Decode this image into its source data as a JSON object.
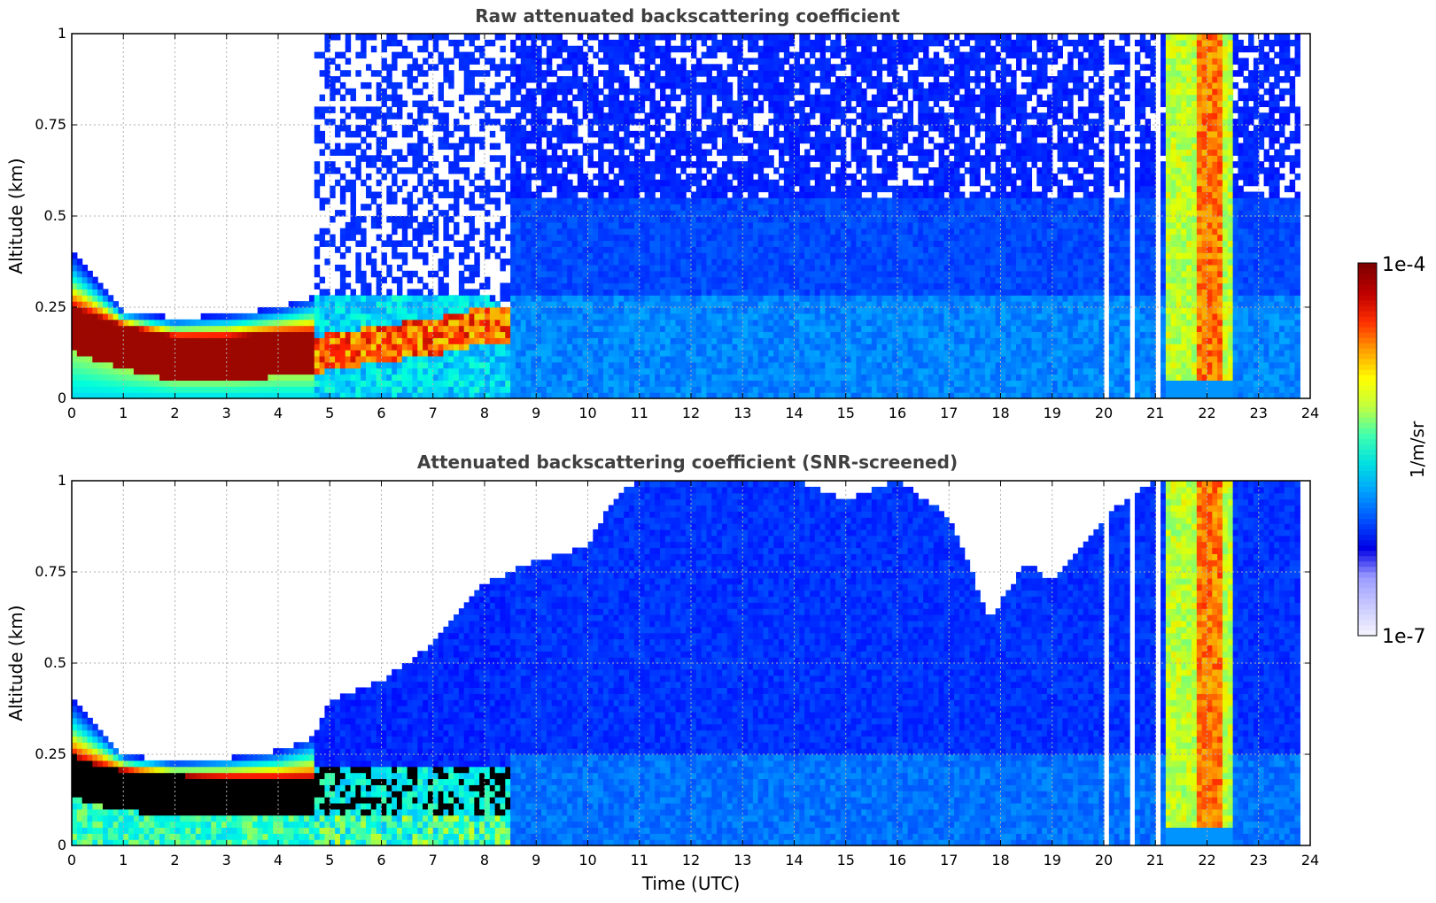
{
  "chart_data": [
    {
      "type": "heatmap",
      "title": "Raw attenuated backscattering coefficient",
      "xlabel": "",
      "ylabel": "Altitude (km)",
      "xlim": [
        0,
        24
      ],
      "ylim": [
        0,
        1
      ],
      "x_ticks": [
        "0",
        "1",
        "2",
        "3",
        "4",
        "5",
        "6",
        "7",
        "8",
        "9",
        "10",
        "11",
        "12",
        "13",
        "14",
        "15",
        "16",
        "17",
        "18",
        "19",
        "20",
        "21",
        "22",
        "23",
        "24"
      ],
      "y_ticks": [
        "0",
        "0.25",
        "0.5",
        "0.75",
        "1"
      ],
      "grid": true,
      "colorscale": "jet",
      "zscale": "log",
      "features": {
        "aerosol_layer_top_km": [
          [
            0,
            0.4
          ],
          [
            1,
            0.24
          ],
          [
            2,
            0.22
          ],
          [
            3,
            0.23
          ],
          [
            4,
            0.25
          ],
          [
            4.7,
            0.28
          ],
          [
            7,
            0.28
          ],
          [
            8,
            0.28
          ],
          [
            9,
            0.2
          ]
        ],
        "strong_layer_peak_km": [
          [
            0,
            0.19
          ],
          [
            1,
            0.14
          ],
          [
            2,
            0.11
          ],
          [
            3,
            0.11
          ],
          [
            4,
            0.12
          ],
          [
            4.7,
            0.12
          ],
          [
            6,
            0.15
          ],
          [
            7,
            0.17
          ],
          [
            8,
            0.2
          ]
        ],
        "white_gap_until_hour": 4.7,
        "noise_onset_hour": 4.7,
        "data_end_hour": 23.8,
        "cloud_bands_hour": [
          [
            21.2,
            22.5
          ]
        ],
        "cloud_core_hour": [
          [
            21.8,
            22.3
          ]
        ],
        "white_gap_lines_hour": [
          20.05,
          20.55,
          21.05
        ]
      }
    },
    {
      "type": "heatmap",
      "title": "Attenuated backscattering coefficient (SNR-screened)",
      "xlabel": "Time (UTC)",
      "ylabel": "Altitude (km)",
      "xlim": [
        0,
        24
      ],
      "ylim": [
        0,
        1
      ],
      "x_ticks": [
        "0",
        "1",
        "2",
        "3",
        "4",
        "5",
        "6",
        "7",
        "8",
        "9",
        "10",
        "11",
        "12",
        "13",
        "14",
        "15",
        "16",
        "17",
        "18",
        "19",
        "20",
        "21",
        "22",
        "23",
        "24"
      ],
      "y_ticks": [
        "0",
        "0.25",
        "0.5",
        "0.75",
        "1"
      ],
      "grid": true,
      "colorscale": "jet",
      "zscale": "log",
      "features": {
        "valid_top_km": [
          [
            0,
            0.4
          ],
          [
            1,
            0.25
          ],
          [
            2,
            0.23
          ],
          [
            3,
            0.24
          ],
          [
            4,
            0.26
          ],
          [
            4.7,
            0.3
          ],
          [
            5,
            0.4
          ],
          [
            6,
            0.45
          ],
          [
            7,
            0.55
          ],
          [
            7.5,
            0.65
          ],
          [
            8,
            0.72
          ],
          [
            9,
            0.78
          ],
          [
            10,
            0.82
          ],
          [
            10.5,
            0.95
          ],
          [
            11,
            1.0
          ],
          [
            14,
            1.0
          ],
          [
            15,
            0.95
          ],
          [
            16,
            1.0
          ],
          [
            17,
            0.9
          ],
          [
            17.8,
            0.62
          ],
          [
            18.5,
            0.78
          ],
          [
            19,
            0.72
          ],
          [
            20,
            0.9
          ],
          [
            21,
            1.0
          ],
          [
            23.8,
            1.0
          ]
        ],
        "saturated_core_color": "#000000",
        "data_end_hour": 23.8,
        "cloud_bands_hour": [
          [
            21.2,
            22.5
          ]
        ],
        "cloud_core_hour": [
          [
            21.8,
            22.3
          ]
        ],
        "white_gap_lines_hour": [
          20.05,
          20.55,
          21.05
        ]
      }
    }
  ],
  "colorbar": {
    "label": "1/m/sr",
    "max_label": "1e-4",
    "min_label": "1e-7",
    "colors": [
      "#f2f2ff",
      "#c8c8ff",
      "#9a9aff",
      "#0000e6",
      "#0050ff",
      "#00a0ff",
      "#00e0e0",
      "#40ffb0",
      "#c0ff40",
      "#ffff00",
      "#ffa000",
      "#ff3000",
      "#c00000",
      "#800000"
    ]
  }
}
